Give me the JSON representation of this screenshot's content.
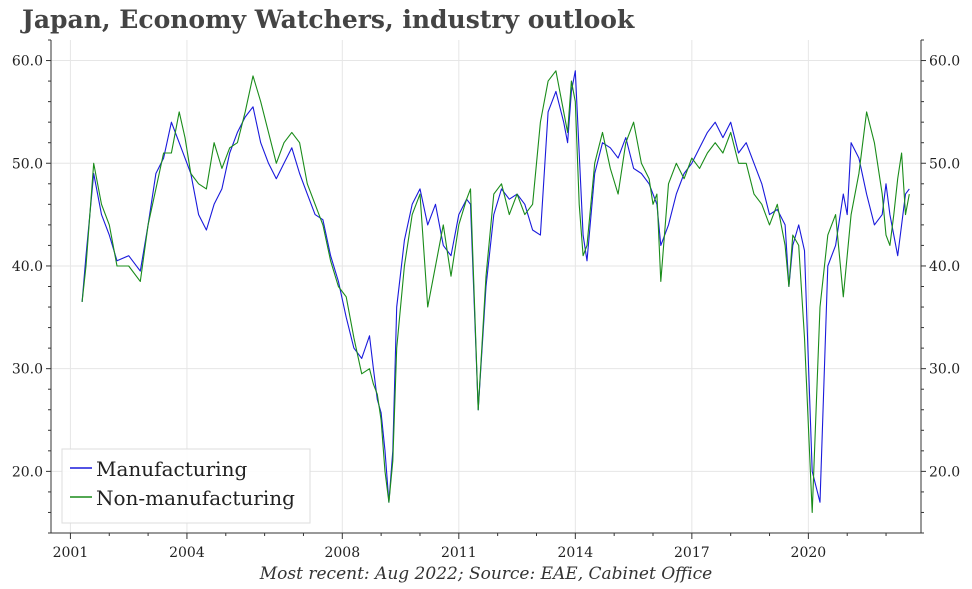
{
  "title": "Japan, Economy Watchers, industry outlook",
  "caption": "Most recent: Aug 2022; Source: EAE, Cabinet Office",
  "colors": {
    "manufacturing": "#1a1adc",
    "non_manufacturing": "#1a8c1a",
    "grid": "#e6e6e6",
    "axis": "#333333"
  },
  "chart_data": {
    "type": "line",
    "title": "Japan, Economy Watchers, industry outlook",
    "xlabel": "",
    "ylabel": "",
    "x_range": [
      2000.5,
      2022.9
    ],
    "ylim": [
      14,
      62
    ],
    "yticks": [
      20,
      30,
      40,
      50,
      60
    ],
    "ytick_labels": [
      "20.0",
      "30.0",
      "40.0",
      "50.0",
      "60.0"
    ],
    "xticks": [
      2001,
      2004,
      2008,
      2011,
      2014,
      2017,
      2020
    ],
    "xtick_labels": [
      "2001",
      "2004",
      "2008",
      "2011",
      "2014",
      "2017",
      "2020"
    ],
    "grid": true,
    "legend_position": "bottom-left",
    "series": [
      {
        "name": "Manufacturing",
        "color": "#1a1adc",
        "x": [
          2001.3,
          2001.4,
          2001.6,
          2001.8,
          2002.0,
          2002.2,
          2002.5,
          2002.8,
          2003.0,
          2003.2,
          2003.4,
          2003.6,
          2003.8,
          2003.95,
          2004.1,
          2004.3,
          2004.5,
          2004.7,
          2004.9,
          2005.1,
          2005.3,
          2005.5,
          2005.7,
          2005.9,
          2006.1,
          2006.3,
          2006.5,
          2006.7,
          2006.9,
          2007.1,
          2007.3,
          2007.5,
          2007.7,
          2007.9,
          2008.1,
          2008.3,
          2008.5,
          2008.7,
          2008.8,
          2008.9,
          2009.0,
          2009.1,
          2009.2,
          2009.3,
          2009.4,
          2009.6,
          2009.8,
          2010.0,
          2010.2,
          2010.4,
          2010.6,
          2010.8,
          2011.0,
          2011.2,
          2011.3,
          2011.5,
          2011.7,
          2011.9,
          2012.1,
          2012.3,
          2012.5,
          2012.7,
          2012.9,
          2013.1,
          2013.3,
          2013.5,
          2013.7,
          2013.8,
          2013.9,
          2014.0,
          2014.1,
          2014.2,
          2014.3,
          2014.5,
          2014.7,
          2014.9,
          2015.1,
          2015.3,
          2015.5,
          2015.7,
          2015.9,
          2016.0,
          2016.1,
          2016.2,
          2016.4,
          2016.6,
          2016.8,
          2017.0,
          2017.2,
          2017.4,
          2017.6,
          2017.8,
          2018.0,
          2018.2,
          2018.4,
          2018.6,
          2018.8,
          2019.0,
          2019.2,
          2019.4,
          2019.5,
          2019.6,
          2019.75,
          2019.9,
          2020.1,
          2020.3,
          2020.5,
          2020.7,
          2020.9,
          2021.0,
          2021.1,
          2021.3,
          2021.5,
          2021.7,
          2021.9,
          2022.0,
          2022.1,
          2022.2,
          2022.3,
          2022.4,
          2022.5,
          2022.6
        ],
        "values": [
          36.5,
          41,
          49,
          45,
          43,
          40.5,
          41,
          39.5,
          44,
          49,
          50.5,
          54,
          52,
          50.5,
          49,
          45,
          43.5,
          46,
          47.5,
          51,
          53,
          54.5,
          55.5,
          52,
          50,
          48.5,
          50,
          51.5,
          49,
          47,
          45,
          44.5,
          41,
          38.5,
          35,
          32,
          31,
          33.2,
          30,
          27,
          25.7,
          22,
          17,
          22,
          36,
          42.5,
          46,
          47.5,
          44,
          46,
          42,
          41,
          45,
          46.5,
          46,
          26,
          38,
          45,
          47.5,
          46.5,
          47,
          46,
          43.5,
          43,
          55,
          57,
          54,
          52,
          57,
          59,
          51,
          43,
          40.5,
          49,
          52,
          51.5,
          50.5,
          52.5,
          49.5,
          49,
          48,
          47,
          46,
          42,
          44,
          47,
          49,
          50,
          51.5,
          53,
          54,
          52.5,
          54,
          51,
          52,
          50,
          48,
          45,
          45.5,
          44,
          38,
          42,
          44,
          41.5,
          20,
          17,
          40,
          42,
          47,
          45,
          52,
          50.5,
          47,
          44,
          45,
          48,
          45,
          43,
          41,
          44,
          47,
          47.5
        ]
      },
      {
        "name": "Non-manufacturing",
        "color": "#1a8c1a",
        "x": [
          2001.3,
          2001.4,
          2001.6,
          2001.8,
          2002.0,
          2002.2,
          2002.5,
          2002.8,
          2003.0,
          2003.2,
          2003.4,
          2003.6,
          2003.8,
          2003.95,
          2004.1,
          2004.3,
          2004.5,
          2004.7,
          2004.9,
          2005.1,
          2005.3,
          2005.5,
          2005.7,
          2005.9,
          2006.1,
          2006.3,
          2006.5,
          2006.7,
          2006.9,
          2007.1,
          2007.3,
          2007.5,
          2007.7,
          2007.9,
          2008.1,
          2008.3,
          2008.5,
          2008.7,
          2008.8,
          2008.9,
          2009.0,
          2009.1,
          2009.2,
          2009.3,
          2009.4,
          2009.6,
          2009.8,
          2010.0,
          2010.2,
          2010.4,
          2010.6,
          2010.8,
          2011.0,
          2011.2,
          2011.3,
          2011.5,
          2011.7,
          2011.9,
          2012.1,
          2012.3,
          2012.5,
          2012.7,
          2012.9,
          2013.1,
          2013.3,
          2013.5,
          2013.7,
          2013.8,
          2013.9,
          2014.0,
          2014.1,
          2014.2,
          2014.3,
          2014.5,
          2014.7,
          2014.9,
          2015.1,
          2015.3,
          2015.5,
          2015.7,
          2015.9,
          2016.0,
          2016.1,
          2016.2,
          2016.4,
          2016.6,
          2016.8,
          2017.0,
          2017.2,
          2017.4,
          2017.6,
          2017.8,
          2018.0,
          2018.2,
          2018.4,
          2018.6,
          2018.8,
          2019.0,
          2019.2,
          2019.4,
          2019.5,
          2019.6,
          2019.75,
          2019.9,
          2020.1,
          2020.3,
          2020.5,
          2020.7,
          2020.9,
          2021.0,
          2021.1,
          2021.3,
          2021.5,
          2021.7,
          2021.9,
          2022.0,
          2022.1,
          2022.2,
          2022.3,
          2022.4,
          2022.5,
          2022.6
        ],
        "values": [
          36.5,
          40,
          50,
          46,
          44,
          40,
          40,
          38.5,
          44,
          47.5,
          51,
          51,
          55,
          52.5,
          49,
          48,
          47.5,
          52,
          49.5,
          51.5,
          52,
          55,
          58.5,
          56,
          53,
          50,
          52,
          53,
          52,
          48,
          46,
          44,
          40.5,
          38,
          37,
          33,
          29.5,
          30,
          28.5,
          27.5,
          25,
          20,
          17,
          21,
          32,
          40,
          45,
          47,
          36,
          40,
          44,
          39,
          44,
          46.5,
          47.5,
          26,
          39,
          47,
          48,
          45,
          47,
          45,
          46,
          54,
          58,
          59,
          55,
          53,
          58,
          56,
          46,
          41,
          42,
          50,
          53,
          49.5,
          47,
          52,
          54,
          50,
          48.5,
          46,
          47,
          38.5,
          48,
          50,
          48.5,
          50.5,
          49.5,
          51,
          52,
          51,
          53,
          50,
          50,
          47,
          46,
          44,
          46,
          42,
          38,
          43,
          42,
          33,
          16,
          36,
          43,
          45,
          37,
          41,
          45,
          49,
          55,
          52,
          47,
          43,
          42,
          45,
          48.5,
          51,
          45,
          47
        ]
      }
    ]
  }
}
